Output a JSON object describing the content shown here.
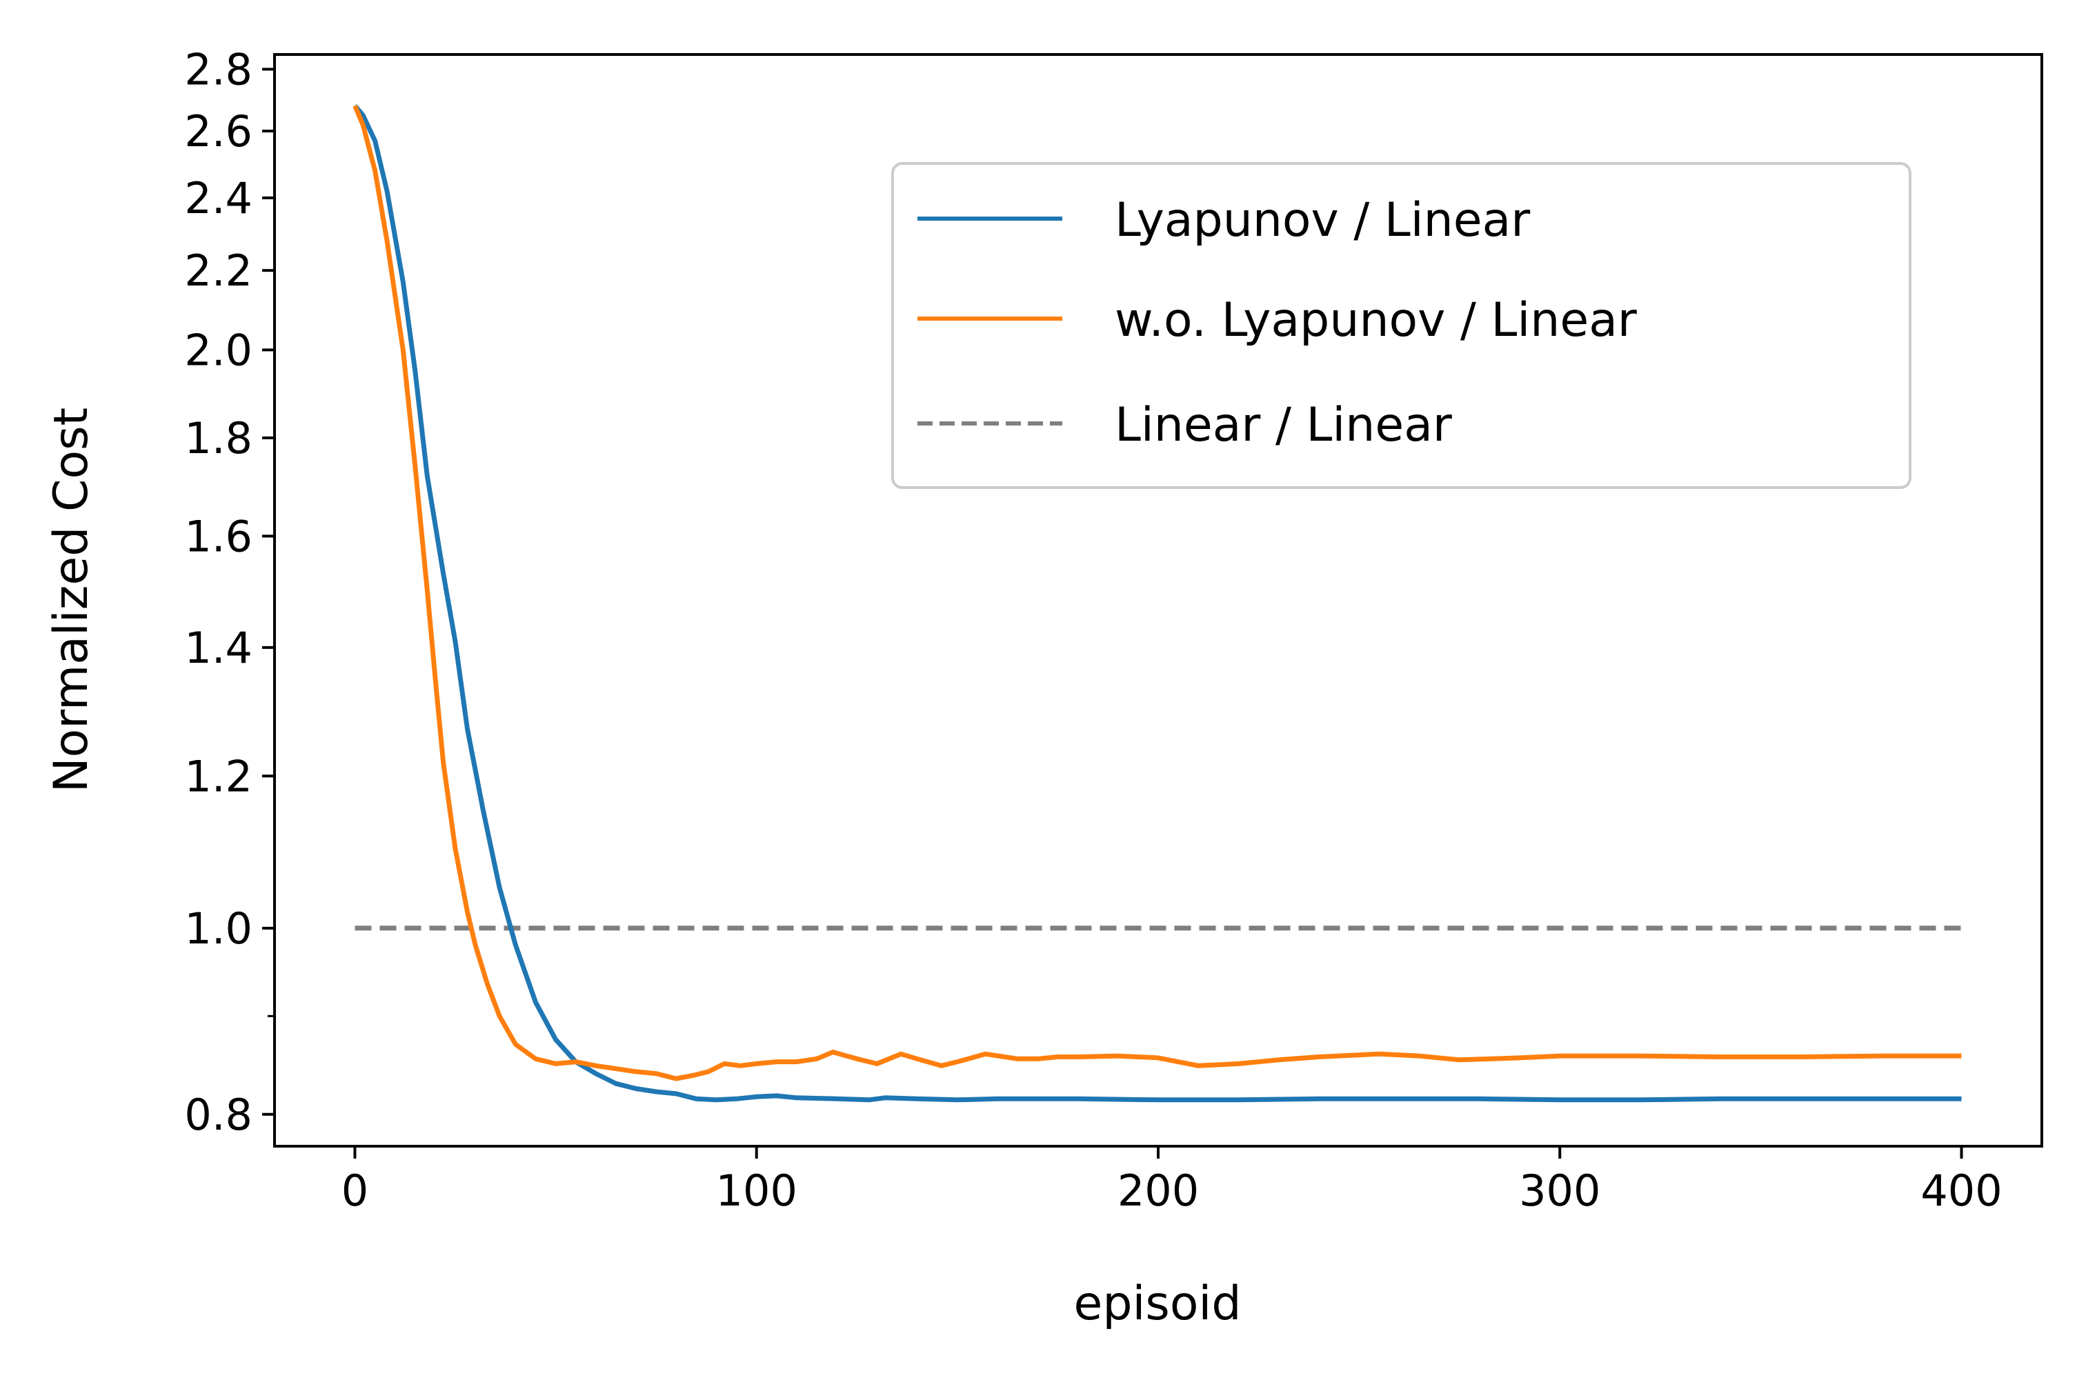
{
  "chart_data": {
    "type": "line",
    "title": "",
    "xlabel": "episoid",
    "ylabel": "Normalized Cost",
    "xlim": [
      -20,
      420
    ],
    "ylim": [
      0.77,
      2.85
    ],
    "yscale": "log",
    "grid": false,
    "legend_position": "upper-right",
    "x_ticks": [
      0,
      100,
      200,
      300,
      400
    ],
    "x_tick_labels": [
      "0",
      "100",
      "200",
      "300",
      "400"
    ],
    "y_ticks": [
      0.8,
      1.0,
      1.2,
      1.4,
      1.6,
      1.8,
      2.0,
      2.2,
      2.4,
      2.6,
      2.8
    ],
    "y_tick_labels": [
      "0.8",
      "1.0",
      "1.2",
      "1.4",
      "1.6",
      "1.8",
      "2.0",
      "2.2",
      "2.4",
      "2.6",
      "2.8"
    ],
    "y_minor_ticks": [
      0.9
    ],
    "series": [
      {
        "name": "Lyapunov / Linear",
        "color": "#1f77b4",
        "style": "solid",
        "x": [
          0,
          2,
          5,
          8,
          12,
          15,
          18,
          22,
          25,
          28,
          32,
          36,
          40,
          45,
          50,
          55,
          60,
          65,
          70,
          75,
          80,
          85,
          90,
          95,
          100,
          105,
          110,
          120,
          128,
          132,
          140,
          150,
          160,
          180,
          200,
          220,
          240,
          260,
          280,
          300,
          320,
          340,
          360,
          380,
          400
        ],
        "y": [
          2.68,
          2.65,
          2.57,
          2.42,
          2.17,
          1.95,
          1.72,
          1.53,
          1.41,
          1.27,
          1.15,
          1.05,
          0.98,
          0.915,
          0.875,
          0.852,
          0.84,
          0.83,
          0.825,
          0.822,
          0.82,
          0.815,
          0.814,
          0.815,
          0.817,
          0.818,
          0.816,
          0.815,
          0.814,
          0.816,
          0.815,
          0.814,
          0.815,
          0.815,
          0.814,
          0.814,
          0.815,
          0.815,
          0.815,
          0.814,
          0.814,
          0.815,
          0.815,
          0.815,
          0.815
        ]
      },
      {
        "name": "w.o. Lyapunov / Linear",
        "color": "#ff7f0e",
        "style": "solid",
        "x": [
          0,
          2,
          5,
          8,
          12,
          15,
          18,
          20,
          22,
          25,
          28,
          30,
          33,
          36,
          40,
          45,
          50,
          55,
          60,
          65,
          70,
          75,
          80,
          84,
          88,
          92,
          96,
          100,
          105,
          110,
          115,
          119,
          125,
          130,
          136,
          140,
          146,
          150,
          157,
          165,
          170,
          175,
          180,
          190,
          200,
          210,
          220,
          230,
          240,
          255,
          265,
          275,
          290,
          300,
          320,
          340,
          360,
          380,
          400
        ],
        "y": [
          2.68,
          2.62,
          2.48,
          2.28,
          2.0,
          1.74,
          1.5,
          1.35,
          1.22,
          1.1,
          1.02,
          0.98,
          0.935,
          0.9,
          0.87,
          0.855,
          0.85,
          0.852,
          0.848,
          0.845,
          0.842,
          0.84,
          0.835,
          0.838,
          0.842,
          0.85,
          0.848,
          0.85,
          0.852,
          0.852,
          0.855,
          0.862,
          0.855,
          0.85,
          0.86,
          0.855,
          0.848,
          0.852,
          0.86,
          0.855,
          0.855,
          0.857,
          0.857,
          0.858,
          0.856,
          0.848,
          0.85,
          0.854,
          0.857,
          0.86,
          0.858,
          0.854,
          0.856,
          0.858,
          0.858,
          0.857,
          0.857,
          0.858,
          0.858
        ]
      },
      {
        "name": "Linear / Linear",
        "color": "#7f7f7f",
        "style": "dashed",
        "x": [
          0,
          400
        ],
        "y": [
          1.0,
          1.0
        ]
      }
    ]
  }
}
